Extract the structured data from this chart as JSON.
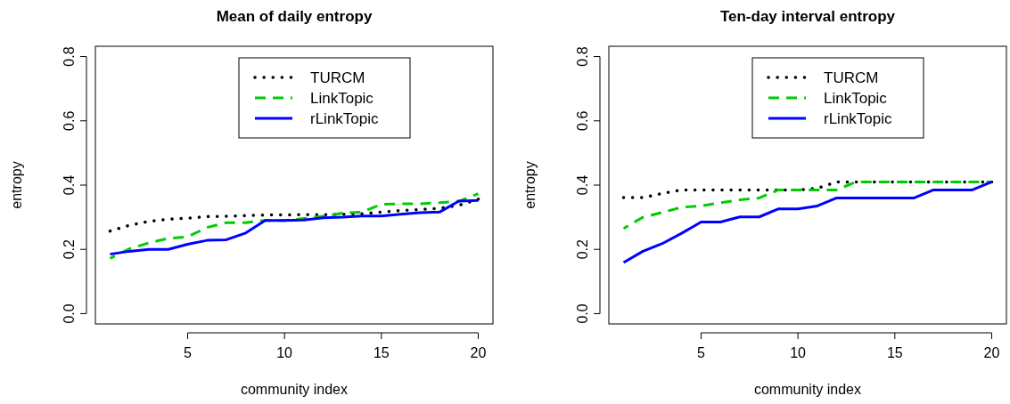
{
  "chart_data": [
    {
      "type": "line",
      "title": "Mean of daily entropy",
      "xlabel": "community index",
      "ylabel": "entropy",
      "x": [
        1,
        2,
        3,
        4,
        5,
        6,
        7,
        8,
        9,
        10,
        11,
        12,
        13,
        14,
        15,
        16,
        17,
        18,
        19,
        20
      ],
      "xlim": [
        0.24,
        20.76
      ],
      "ylim": [
        -0.032,
        0.832
      ],
      "xticks": [
        5,
        10,
        15,
        20
      ],
      "yticks": [
        {
          "value": 0,
          "label": "0.0"
        },
        0.2,
        0.4,
        0.6,
        0.8
      ],
      "legend": "top",
      "grid": false,
      "series": [
        {
          "name": "TURCM",
          "color": "#000000",
          "line_style": "dotted",
          "values": [
            0.257,
            0.275,
            0.287,
            0.294,
            0.297,
            0.302,
            0.303,
            0.305,
            0.307,
            0.307,
            0.308,
            0.308,
            0.309,
            0.311,
            0.316,
            0.321,
            0.324,
            0.328,
            0.337,
            0.356
          ]
        },
        {
          "name": "LinkTopic",
          "color": "#00cc00",
          "line_style": "dashed",
          "values": [
            0.172,
            0.202,
            0.22,
            0.234,
            0.239,
            0.268,
            0.283,
            0.283,
            0.29,
            0.29,
            0.296,
            0.303,
            0.313,
            0.316,
            0.34,
            0.342,
            0.342,
            0.345,
            0.35,
            0.373
          ]
        },
        {
          "name": "rLinkTopic",
          "color": "#0000ff",
          "line_style": "solid",
          "values": [
            0.185,
            0.194,
            0.2,
            0.2,
            0.216,
            0.228,
            0.23,
            0.251,
            0.29,
            0.29,
            0.291,
            0.298,
            0.3,
            0.304,
            0.304,
            0.309,
            0.314,
            0.316,
            0.35,
            0.352
          ]
        }
      ]
    },
    {
      "type": "line",
      "title": "Ten-day interval entropy",
      "xlabel": "community index",
      "ylabel": "entropy",
      "x": [
        1,
        2,
        3,
        4,
        5,
        6,
        7,
        8,
        9,
        10,
        11,
        12,
        13,
        14,
        15,
        16,
        17,
        18,
        19,
        20
      ],
      "xlim": [
        0.24,
        20.76
      ],
      "ylim": [
        -0.032,
        0.832
      ],
      "xticks": [
        5,
        10,
        15,
        20
      ],
      "yticks": [
        {
          "value": 0,
          "label": "0.0"
        },
        0.2,
        0.4,
        0.6,
        0.8
      ],
      "legend": "top",
      "grid": false,
      "series": [
        {
          "name": "TURCM",
          "color": "#000000",
          "line_style": "dotted",
          "values": [
            0.361,
            0.361,
            0.374,
            0.385,
            0.385,
            0.385,
            0.385,
            0.385,
            0.385,
            0.385,
            0.39,
            0.41,
            0.41,
            0.41,
            0.41,
            0.41,
            0.41,
            0.41,
            0.41,
            0.41
          ]
        },
        {
          "name": "LinkTopic",
          "color": "#00cc00",
          "line_style": "dashed",
          "values": [
            0.265,
            0.3,
            0.315,
            0.331,
            0.335,
            0.345,
            0.354,
            0.36,
            0.385,
            0.385,
            0.385,
            0.385,
            0.41,
            0.41,
            0.41,
            0.41,
            0.41,
            0.41,
            0.41,
            0.41
          ]
        },
        {
          "name": "rLinkTopic",
          "color": "#0000ff",
          "line_style": "solid",
          "values": [
            0.159,
            0.194,
            0.218,
            0.25,
            0.285,
            0.285,
            0.301,
            0.301,
            0.326,
            0.326,
            0.335,
            0.36,
            0.36,
            0.36,
            0.36,
            0.36,
            0.385,
            0.385,
            0.385,
            0.41
          ]
        }
      ]
    }
  ]
}
